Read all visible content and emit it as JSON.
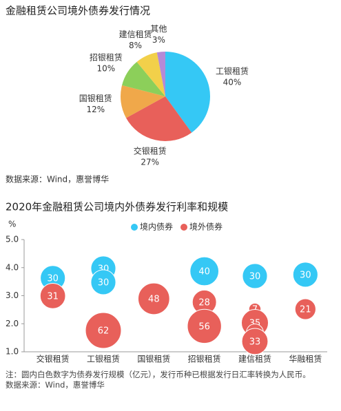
{
  "chart_data": [
    {
      "type": "pie",
      "title": "金融租赁公司境外债券发行情况",
      "categories": [
        "工银租赁",
        "交银租赁",
        "国银租赁",
        "招银租赁",
        "建信租赁",
        "其他"
      ],
      "values": [
        40,
        27,
        12,
        10,
        8,
        3
      ],
      "value_labels": [
        "40%",
        "27%",
        "12%",
        "10%",
        "8%",
        "3%"
      ],
      "colors": [
        "#35c8f5",
        "#e8605a",
        "#f0a84a",
        "#8ccf5a",
        "#f2d04a",
        "#b58ad6"
      ],
      "source": "数据来源：Wind，惠誉博华"
    },
    {
      "type": "bubble",
      "title": "2020年金融租赁公司境内外债券发行利率和规模",
      "ylabel": "%",
      "categories": [
        "交银租赁",
        "工银租赁",
        "国银租赁",
        "招银租赁",
        "建信租赁",
        "华融租赁"
      ],
      "ylim": [
        1,
        5
      ],
      "yticks": [
        {
          "value": 1,
          "label": "1.0"
        },
        {
          "value": 2,
          "label": "2.0"
        },
        {
          "value": 3,
          "label": "3.0"
        },
        {
          "value": 4,
          "label": "4.0"
        },
        {
          "value": 5,
          "label": "5.0"
        }
      ],
      "series": [
        {
          "name": "境内债券",
          "color": "#35c8f5",
          "x": [
            "交银租赁",
            "工银租赁",
            "工银租赁",
            "招银租赁",
            "建信租赁",
            "华融租赁"
          ],
          "values": [
            3.63,
            3.97,
            3.48,
            3.87,
            3.7,
            3.75
          ],
          "sizes": [
            30,
            30,
            30,
            40,
            30,
            30
          ]
        },
        {
          "name": "境外债券",
          "color": "#e8605a",
          "x": [
            "交银租赁",
            "工银租赁",
            "国银租赁",
            "招银租赁",
            "招银租赁",
            "建信租赁",
            "建信租赁",
            "建信租赁",
            "建信租赁",
            "华融租赁"
          ],
          "values": [
            2.99,
            1.76,
            2.89,
            2.77,
            1.91,
            2.52,
            2.03,
            1.69,
            1.37,
            2.52
          ],
          "sizes": [
            31,
            62,
            48,
            28,
            56,
            7,
            35,
            14,
            33,
            21
          ]
        }
      ],
      "legend": "top",
      "note": "注：圆内白色数字为债券发行规模（亿元），发行币种已根据发行日汇率转换为人民币。",
      "source": "数据来源：Wind，惠誉博华"
    }
  ]
}
